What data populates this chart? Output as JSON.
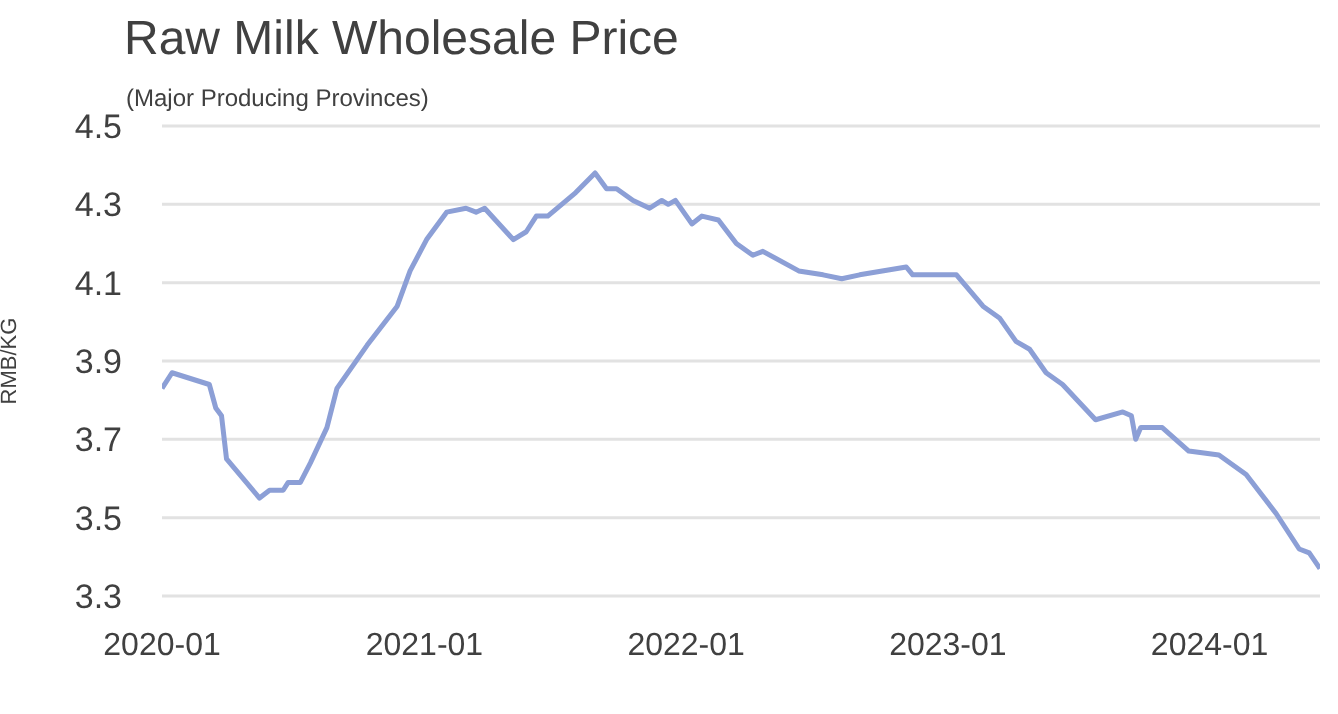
{
  "chart_data": {
    "type": "line",
    "title": "Raw Milk Wholesale Price",
    "subtitle": "(Major Producing Provinces)",
    "ylabel": "RMB/KG",
    "x": [
      "2020-01-01",
      "2020-01-15",
      "2020-03-07",
      "2020-03-16",
      "2020-03-24",
      "2020-03-31",
      "2020-05-16",
      "2020-05-30",
      "2020-06-18",
      "2020-06-25",
      "2020-07-12",
      "2020-07-26",
      "2020-08-18",
      "2020-09-01",
      "2020-10-13",
      "2020-11-24",
      "2020-12-12",
      "2021-01-04",
      "2021-02-01",
      "2021-02-28",
      "2021-03-14",
      "2021-03-26",
      "2021-05-05",
      "2021-05-23",
      "2021-06-06",
      "2021-06-22",
      "2021-07-31",
      "2021-08-27",
      "2021-09-12",
      "2021-09-26",
      "2021-10-19",
      "2021-11-11",
      "2021-11-28",
      "2021-12-07",
      "2021-12-17",
      "2022-01-09",
      "2022-01-23",
      "2022-02-15",
      "2022-03-12",
      "2022-04-04",
      "2022-04-18",
      "2022-06-07",
      "2022-07-11",
      "2022-08-06",
      "2022-08-31",
      "2022-11-04",
      "2022-11-13",
      "2023-01-13",
      "2023-02-19",
      "2023-03-14",
      "2023-04-06",
      "2023-04-25",
      "2023-05-18",
      "2023-06-10",
      "2023-07-26",
      "2023-09-02",
      "2023-09-14",
      "2023-09-20",
      "2023-09-27",
      "2023-10-27",
      "2023-12-03",
      "2024-01-14",
      "2024-02-21",
      "2024-04-03",
      "2024-05-05",
      "2024-05-19",
      "2024-06-03"
    ],
    "series": [
      {
        "color": "#8c9fd6",
        "values": [
          3.83,
          3.87,
          3.84,
          3.78,
          3.76,
          3.65,
          3.55,
          3.57,
          3.57,
          3.59,
          3.59,
          3.64,
          3.73,
          3.83,
          3.94,
          4.04,
          4.13,
          4.21,
          4.28,
          4.29,
          4.28,
          4.29,
          4.21,
          4.23,
          4.27,
          4.27,
          4.33,
          4.38,
          4.34,
          4.34,
          4.31,
          4.29,
          4.31,
          4.3,
          4.31,
          4.25,
          4.27,
          4.26,
          4.2,
          4.17,
          4.18,
          4.13,
          4.12,
          4.11,
          4.12,
          4.14,
          4.12,
          4.12,
          4.04,
          4.01,
          3.95,
          3.93,
          3.87,
          3.84,
          3.75,
          3.77,
          3.76,
          3.7,
          3.73,
          3.73,
          3.67,
          3.66,
          3.61,
          3.51,
          3.42,
          3.41,
          3.37
        ]
      }
    ],
    "xlim": [
      "2020-01-01",
      "2024-06-03"
    ],
    "xticks": [
      "2020-01",
      "2021-01",
      "2022-01",
      "2023-01",
      "2024-01"
    ],
    "ylim": [
      3.3,
      4.5
    ],
    "yticks": [
      3.3,
      3.5,
      3.7,
      3.9,
      4.1,
      4.3,
      4.5
    ],
    "grid": "y",
    "marker": "none",
    "line_style": "solid",
    "legend": false
  }
}
